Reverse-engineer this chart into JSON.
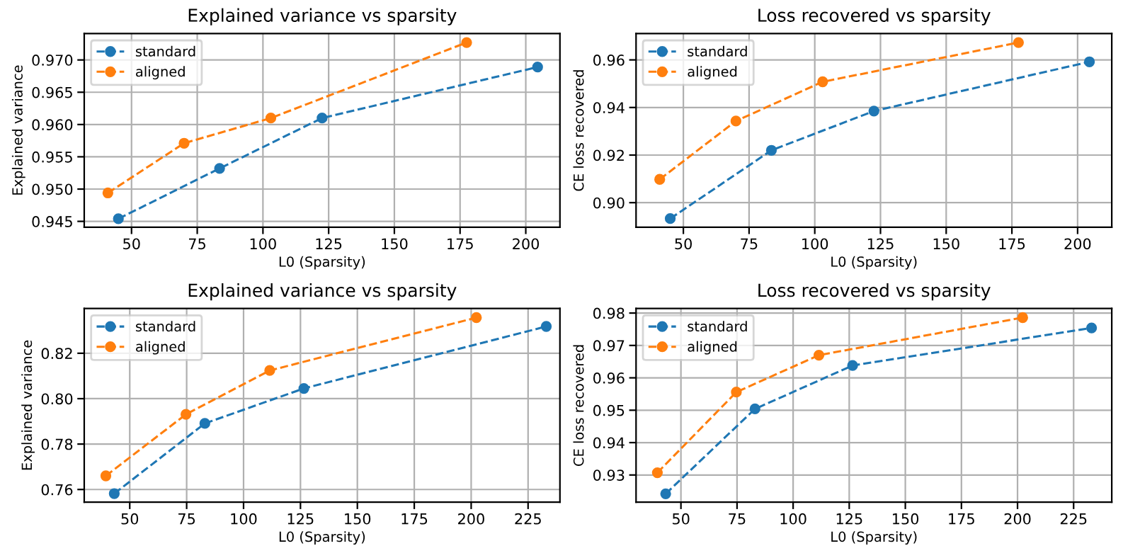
{
  "chart_data": [
    {
      "type": "line",
      "title": "Explained variance vs sparsity",
      "xlabel": "L0 (Sparsity)",
      "ylabel": "Explained variance",
      "xlim": [
        32,
        213
      ],
      "xticks": [
        50,
        75,
        100,
        125,
        150,
        175,
        200
      ],
      "ylim": [
        0.9441,
        0.9741
      ],
      "yticks": [
        {
          "value": 0.945,
          "label": "0.945"
        },
        {
          "value": 0.95,
          "label": "0.950"
        },
        {
          "value": 0.955,
          "label": "0.955"
        },
        {
          "value": 0.96,
          "label": "0.960"
        },
        {
          "value": 0.965,
          "label": "0.965"
        },
        {
          "value": 0.97,
          "label": "0.970"
        }
      ],
      "grid": true,
      "legend": "top left",
      "marker": "circle",
      "line_style": "dashed",
      "series": [
        {
          "name": "standard",
          "color": "#1f77b4",
          "x": [
            45,
            83.5,
            122.5,
            204.5
          ],
          "values": [
            0.9454,
            0.9532,
            0.961,
            0.9689
          ]
        },
        {
          "name": "aligned",
          "color": "#ff7f0e",
          "x": [
            41,
            70,
            103,
            177.5
          ],
          "values": [
            0.9494,
            0.9571,
            0.961,
            0.9727
          ]
        }
      ]
    },
    {
      "type": "line",
      "title": "Loss recovered vs sparsity",
      "xlabel": "L0 (Sparsity)",
      "ylabel": "CE loss recovered",
      "xlim": [
        32,
        213
      ],
      "xticks": [
        50,
        75,
        100,
        125,
        150,
        175,
        200
      ],
      "ylim": [
        0.8897,
        0.9711
      ],
      "yticks": [
        {
          "value": 0.9,
          "label": "0.90"
        },
        {
          "value": 0.92,
          "label": "0.92"
        },
        {
          "value": 0.94,
          "label": "0.94"
        },
        {
          "value": 0.96,
          "label": "0.96"
        }
      ],
      "grid": true,
      "legend": "top left",
      "marker": "circle",
      "line_style": "dashed",
      "series": [
        {
          "name": "standard",
          "color": "#1f77b4",
          "x": [
            45,
            83.5,
            122.5,
            204.5
          ],
          "values": [
            0.8933,
            0.922,
            0.9385,
            0.9592
          ]
        },
        {
          "name": "aligned",
          "color": "#ff7f0e",
          "x": [
            41,
            70,
            103,
            177.5
          ],
          "values": [
            0.9098,
            0.9343,
            0.9508,
            0.9673
          ]
        }
      ]
    },
    {
      "type": "line",
      "title": "Explained variance vs sparsity",
      "xlabel": "L0 (Sparsity)",
      "ylabel": "Explained variance",
      "xlim": [
        30,
        239
      ],
      "xticks": [
        50,
        75,
        100,
        125,
        150,
        175,
        200,
        225
      ],
      "ylim": [
        0.7544,
        0.8397
      ],
      "yticks": [
        {
          "value": 0.76,
          "label": "0.76"
        },
        {
          "value": 0.78,
          "label": "0.78"
        },
        {
          "value": 0.8,
          "label": "0.80"
        },
        {
          "value": 0.82,
          "label": "0.82"
        }
      ],
      "grid": true,
      "legend": "top left",
      "marker": "circle",
      "line_style": "dashed",
      "series": [
        {
          "name": "standard",
          "color": "#1f77b4",
          "x": [
            43.2,
            83,
            126.5,
            233
          ],
          "values": [
            0.7582,
            0.7891,
            0.8045,
            0.8318
          ]
        },
        {
          "name": "aligned",
          "color": "#ff7f0e",
          "x": [
            39.5,
            74.7,
            111.5,
            202.3
          ],
          "values": [
            0.766,
            0.7931,
            0.8124,
            0.8357
          ]
        }
      ]
    },
    {
      "type": "line",
      "title": "Loss recovered vs sparsity",
      "xlabel": "L0 (Sparsity)",
      "ylabel": "CE loss recovered",
      "xlim": [
        30,
        242
      ],
      "xticks": [
        50,
        75,
        100,
        125,
        150,
        175,
        200,
        225
      ],
      "ylim": [
        0.9216,
        0.9814
      ],
      "yticks": [
        {
          "value": 0.93,
          "label": "0.93"
        },
        {
          "value": 0.94,
          "label": "0.94"
        },
        {
          "value": 0.95,
          "label": "0.95"
        },
        {
          "value": 0.96,
          "label": "0.96"
        },
        {
          "value": 0.97,
          "label": "0.97"
        },
        {
          "value": 0.98,
          "label": "0.98"
        }
      ],
      "grid": true,
      "legend": "top left",
      "marker": "circle",
      "line_style": "dashed",
      "series": [
        {
          "name": "standard",
          "color": "#1f77b4",
          "x": [
            43.2,
            83,
            126.5,
            233
          ],
          "values": [
            0.9242,
            0.9504,
            0.9638,
            0.9754
          ]
        },
        {
          "name": "aligned",
          "color": "#ff7f0e",
          "x": [
            39.5,
            74.7,
            111.5,
            202.3
          ],
          "values": [
            0.9307,
            0.9556,
            0.967,
            0.9786
          ]
        }
      ]
    }
  ]
}
